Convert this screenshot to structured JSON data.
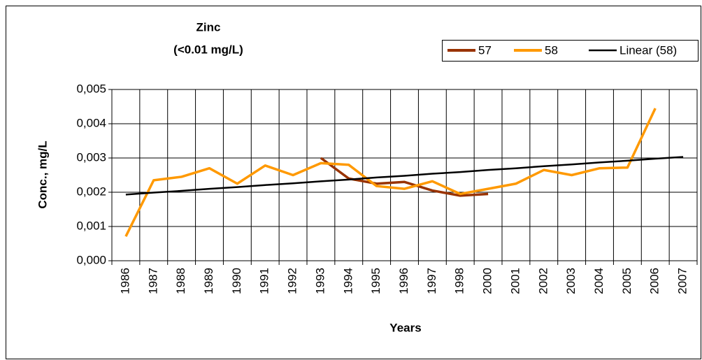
{
  "chart_data": {
    "type": "line",
    "title": "Zinc",
    "subtitle": "(<0.01 mg/L)",
    "x_label": "Years",
    "y_label": "Conc., mg/L",
    "categories": [
      "1986",
      "1987",
      "1988",
      "1989",
      "1990",
      "1991",
      "1992",
      "1993",
      "1994",
      "1995",
      "1996",
      "1997",
      "1998",
      "2000",
      "2001",
      "2002",
      "2003",
      "2004",
      "2005",
      "2006",
      "2007"
    ],
    "series": [
      {
        "name": "57",
        "color": "#993300",
        "values": [
          null,
          null,
          null,
          null,
          null,
          null,
          null,
          0.003,
          0.0024,
          0.00225,
          0.0023,
          0.00205,
          0.0019,
          0.00195,
          null,
          null,
          null,
          null,
          null,
          null,
          null
        ]
      },
      {
        "name": "58",
        "color": "#ff9900",
        "values": [
          0.00071,
          0.00235,
          0.00245,
          0.0027,
          0.00225,
          0.00278,
          0.0025,
          0.00285,
          0.0028,
          0.00218,
          0.0021,
          0.00232,
          0.00195,
          0.0021,
          0.00225,
          0.00265,
          0.0025,
          0.0027,
          0.00272,
          0.00445,
          null
        ]
      },
      {
        "name": "Linear (58)",
        "color": "#000000",
        "values": [
          0.00193,
          0.00199,
          0.00204,
          0.0021,
          0.00215,
          0.00221,
          0.00226,
          0.00232,
          0.00237,
          0.00243,
          0.00248,
          0.00254,
          0.00259,
          0.00265,
          0.0027,
          0.00276,
          0.00281,
          0.00287,
          0.00292,
          0.00298,
          0.00303
        ]
      }
    ],
    "ylim": [
      0,
      0.005
    ],
    "yticks": [
      {
        "value": 0,
        "label": "0,000"
      },
      {
        "value": 0.001,
        "label": "0,001"
      },
      {
        "value": 0.002,
        "label": "0,002"
      },
      {
        "value": 0.003,
        "label": "0,003"
      },
      {
        "value": 0.004,
        "label": "0,004"
      },
      {
        "value": 0.005,
        "label": "0,005"
      }
    ],
    "grid": true,
    "legend": "top-right"
  }
}
